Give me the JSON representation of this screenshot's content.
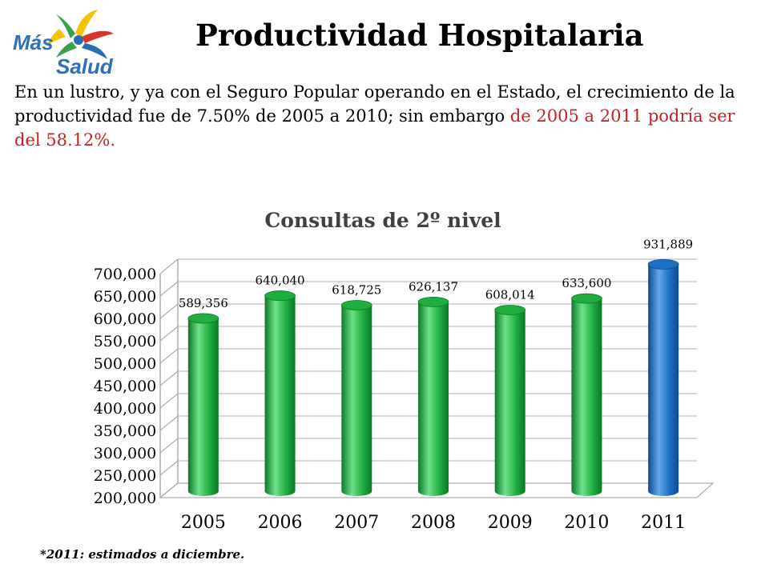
{
  "logo": {
    "line1": "Más",
    "line2": "Salud",
    "colors": {
      "text": "#2e6fba",
      "green": "#3aa14b",
      "yellow": "#f3c200",
      "red": "#d9342b",
      "blue": "#2a6db5"
    }
  },
  "title": "Productividad Hospitalaria",
  "intro": {
    "text": "En un lustro, y ya con el Seguro Popular operando en el Estado, el crecimiento de la productividad fue de 7.50% de 2005 a 2010; sin embargo ",
    "highlight": "de 2005 a 2011 podría  ser del 58.12%.",
    "highlight_color": "#c8201e"
  },
  "chart_data": {
    "type": "bar",
    "title": "Consultas de 2º nivel",
    "categories": [
      "2005",
      "2006",
      "2007",
      "2008",
      "2009",
      "2010",
      "2011"
    ],
    "values": [
      589356,
      640040,
      618725,
      626137,
      608014,
      633600,
      931889
    ],
    "data_labels": [
      "589,356",
      "640,040",
      "618,725",
      "626,137",
      "608,014",
      "633,600",
      "931,889"
    ],
    "y_ticks": [
      "200,000",
      "250,000",
      "300,000",
      "350,000",
      "400,000",
      "450,000",
      "500,000",
      "550,000",
      "600,000",
      "650,000",
      "700,000"
    ],
    "ylim": [
      200000,
      700000
    ],
    "xlabel": "",
    "ylabel": "",
    "grid": true,
    "style": "3d-cylinder",
    "colors": {
      "default": "#1fae3e",
      "default_dark": "#0a7a26",
      "default_light": "#6ee08a",
      "highlight": "#1f6fc5",
      "highlight_dark": "#0c4a94",
      "highlight_light": "#63a8ea"
    },
    "highlight_category": "2011"
  },
  "footnote": "*2011: estimados a diciembre."
}
